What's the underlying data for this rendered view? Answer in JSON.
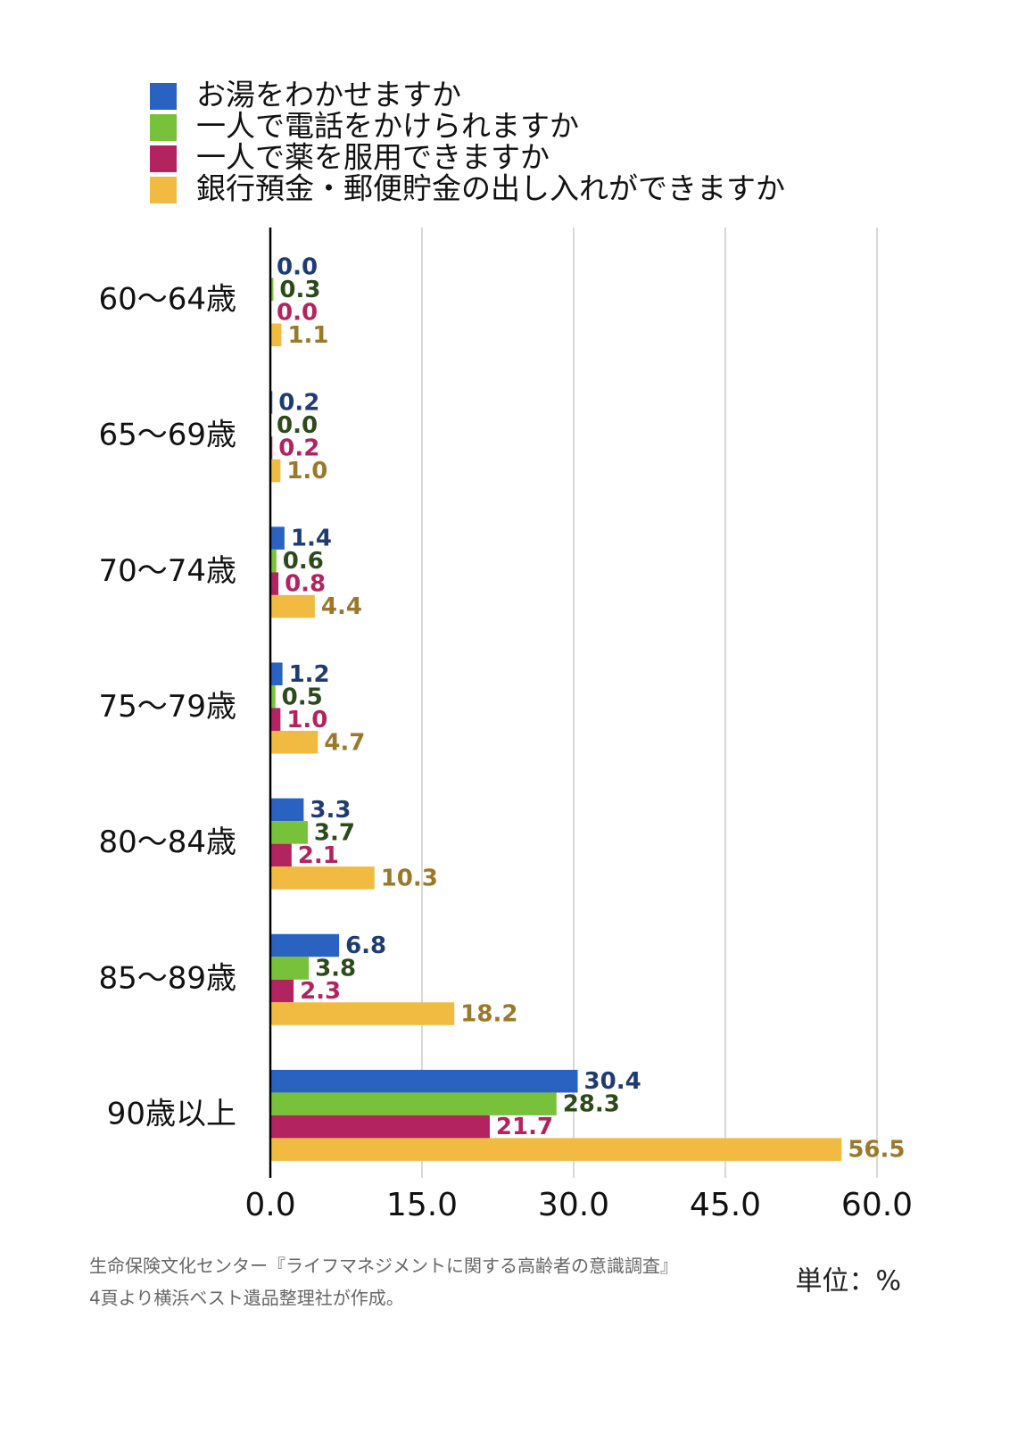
{
  "chart_data": {
    "type": "hbar",
    "categories": [
      "60～64歳",
      "65～69歳",
      "70～74歳",
      "75～79歳",
      "80～84歳",
      "85～89歳",
      "90歳以上"
    ],
    "series": [
      {
        "name": "お湯をわかせますか",
        "color": "#2a62c2",
        "label_color": "#1f3c72",
        "values": [
          0.0,
          0.2,
          1.4,
          1.2,
          3.3,
          6.8,
          30.4
        ],
        "value_labels": [
          "0.0",
          "0.2",
          "1.4",
          "1.2",
          "3.3",
          "6.8",
          "30.4"
        ]
      },
      {
        "name": " 一人で電話をかけられますか",
        "color": "#77c23a",
        "label_color": "#2d4a1a",
        "values": [
          0.3,
          0.0,
          0.6,
          0.5,
          3.7,
          3.8,
          28.3
        ],
        "value_labels": [
          "0.3",
          "0.0",
          "0.6",
          "0.5",
          "3.7",
          "3.8",
          "28.3"
        ]
      },
      {
        "name": "一人で薬を服用できますか",
        "color": "#b3235f",
        "label_color": "#b3235f",
        "values": [
          0.0,
          0.2,
          0.8,
          1.0,
          2.1,
          2.3,
          21.7
        ],
        "value_labels": [
          "0.0",
          "0.2",
          "0.8",
          "1.0",
          "2.1",
          "2.3",
          "21.7"
        ]
      },
      {
        "name": " 銀行預金・郵便貯金の出し入れができますか",
        "color": "#f0bb40",
        "label_color": "#9a7a2a",
        "values": [
          1.1,
          1.0,
          4.4,
          4.7,
          10.3,
          18.2,
          56.5
        ],
        "value_labels": [
          "1.1",
          "1.0",
          "4.4",
          "4.7",
          "10.3",
          "18.2",
          "56.5"
        ]
      }
    ],
    "xlim": [
      0,
      60
    ],
    "xticks": [
      {
        "value": 0,
        "label": "0.0"
      },
      {
        "value": 15,
        "label": "15.0"
      },
      {
        "value": 30,
        "label": "30.0"
      },
      {
        "value": 45,
        "label": "45.0"
      },
      {
        "value": 60,
        "label": "60.0"
      }
    ],
    "grid": true,
    "source": [
      "生命保険文化センター『ライフマネジメントに関する高齢者の意識調査』",
      "4頁より横浜ベスト遺品整理社が作成。"
    ],
    "unit": "単位：%"
  }
}
